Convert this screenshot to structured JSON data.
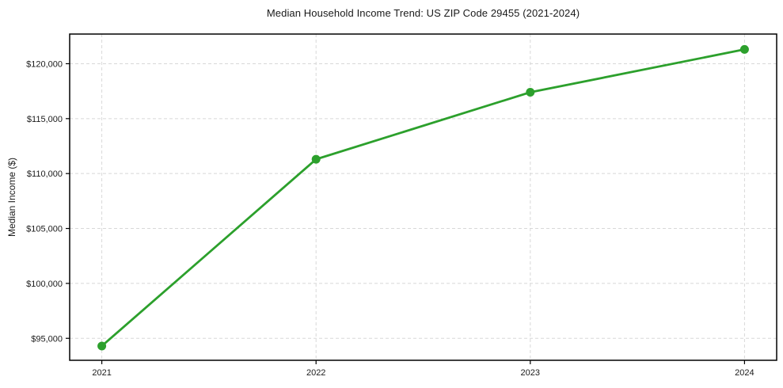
{
  "figure": {
    "title": "Median Household Income Trend: US ZIP Code 29455 (2021-2024)",
    "ylabel": "Median Income ($)"
  },
  "chart_data": {
    "type": "line",
    "title": "Median Household Income Trend: US ZIP Code 29455 (2021-2024)",
    "xlabel": "",
    "ylabel": "Median Income ($)",
    "x": [
      2021,
      2022,
      2023,
      2024
    ],
    "values": [
      94300,
      111300,
      117400,
      121300
    ],
    "series": [
      {
        "name": "Median Household Income",
        "values": [
          94300,
          111300,
          117400,
          121300
        ]
      }
    ],
    "xticks": [
      2021,
      2022,
      2023,
      2024
    ],
    "xtick_labels": [
      "2021",
      "2022",
      "2023",
      "2024"
    ],
    "yticks": [
      95000,
      100000,
      105000,
      110000,
      115000,
      120000
    ],
    "ytick_labels": [
      "$95,000",
      "$100,000",
      "$105,000",
      "$110,000",
      "$115,000",
      "$120,000"
    ],
    "xlim": [
      2020.85,
      2024.15
    ],
    "ylim": [
      93000,
      122700
    ],
    "grid": true,
    "legend": false,
    "line_color": "#2ca02c",
    "marker": "circle",
    "marker_color": "#2ca02c",
    "grid_color": "#d8d8d8",
    "axis_color": "#000000",
    "text_color": "#1a1a1a",
    "background": "#ffffff"
  }
}
